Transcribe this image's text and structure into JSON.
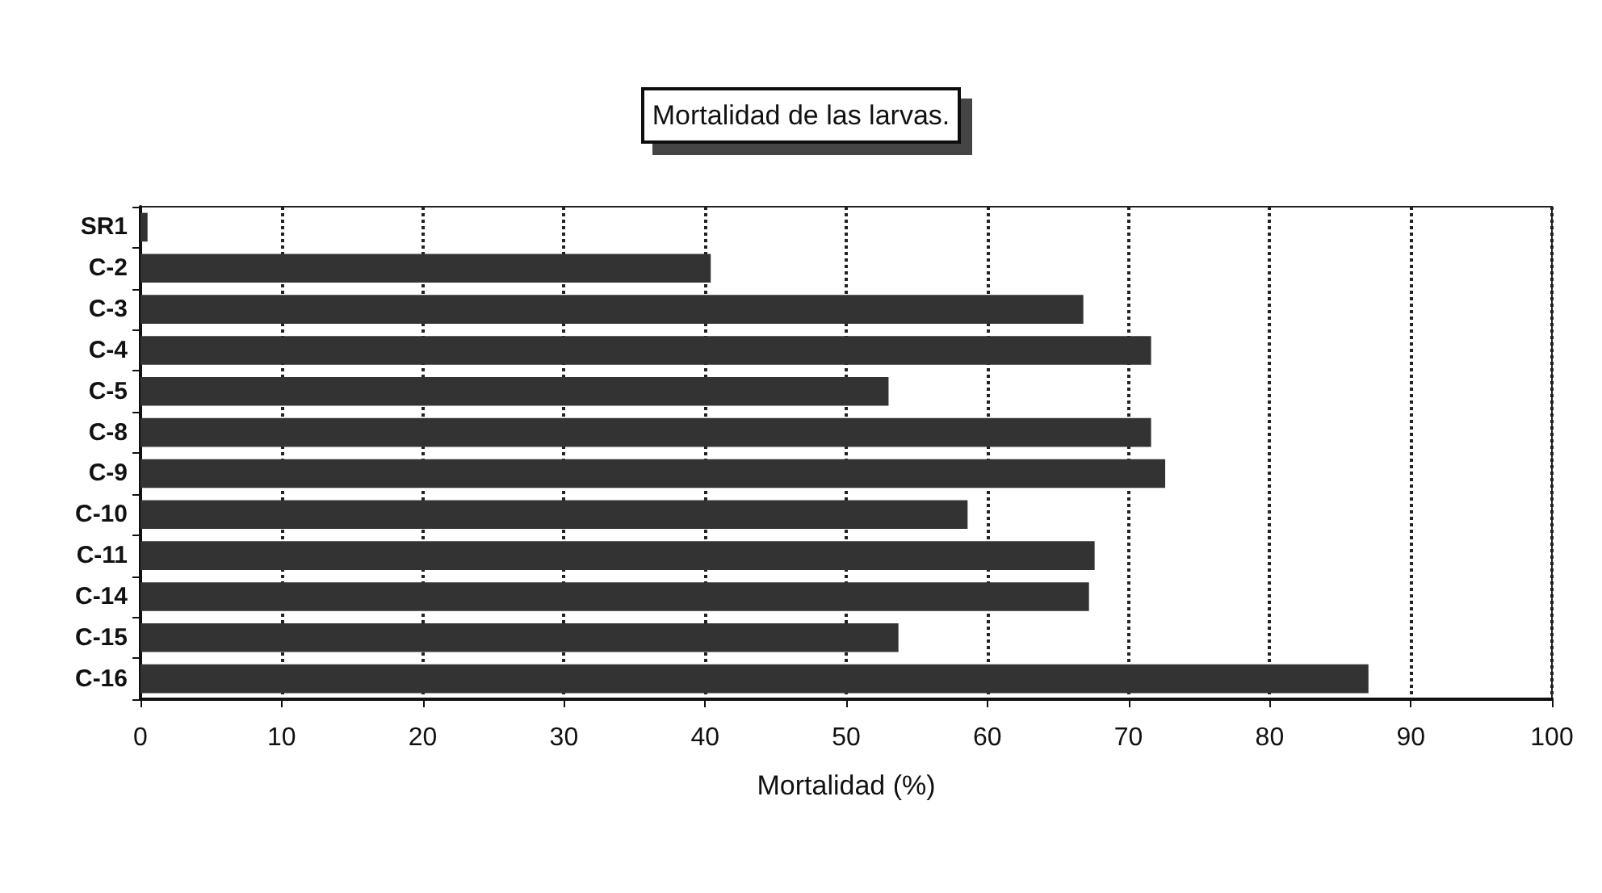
{
  "chart_data": {
    "type": "bar",
    "orientation": "horizontal",
    "title": "Mortalidad de las larvas.",
    "xlabel": "Mortalidad (%)",
    "categories": [
      "SR1",
      "C-2",
      "C-3",
      "C-4",
      "C-5",
      "C-8",
      "C-9",
      "C-10",
      "C-11",
      "C-14",
      "C-15",
      "C-16"
    ],
    "values": [
      0.5,
      40.4,
      66.8,
      71.6,
      53.0,
      71.6,
      72.6,
      58.6,
      67.6,
      67.2,
      53.7,
      87.0
    ],
    "color": "#333333",
    "xlim": [
      0,
      100
    ],
    "xticks": [
      0,
      10,
      20,
      30,
      40,
      50,
      60,
      70,
      80,
      90,
      100
    ],
    "grid": "x"
  }
}
